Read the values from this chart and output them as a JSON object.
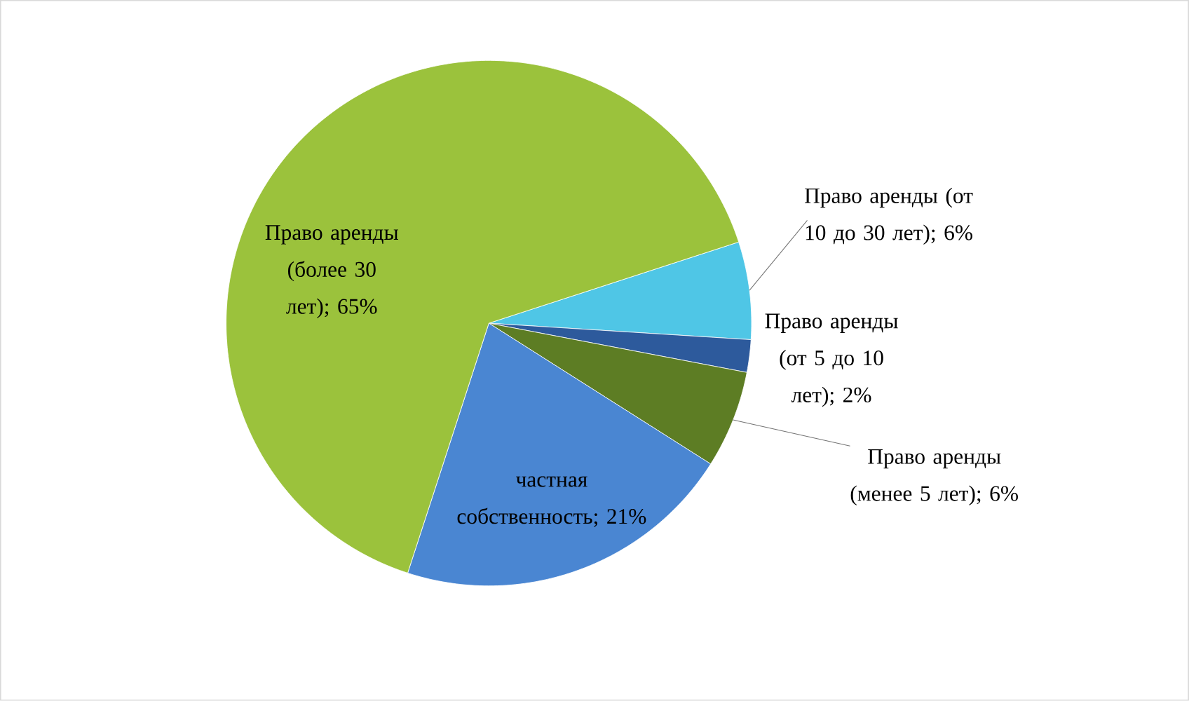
{
  "chart_data": {
    "type": "pie",
    "categories": [
      "Право аренды (от 10 до 30 лет)",
      "Право аренды (от 5 до 10 лет)",
      "Право аренды (менее 5 лет)",
      "частная собственность",
      "Право аренды (более 30 лет)"
    ],
    "values": [
      6,
      2,
      6,
      21,
      65
    ],
    "value_labels": [
      "; 6%",
      "; 2%",
      "; 6%",
      "; 21%",
      "; 65%"
    ],
    "colors": [
      "#4fc6e6",
      "#2d5a9c",
      "#5d7d24",
      "#4a86d2",
      "#9bc23c"
    ]
  }
}
